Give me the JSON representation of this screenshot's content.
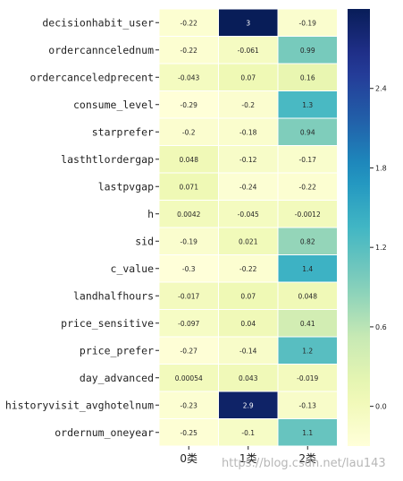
{
  "chart_data": {
    "type": "heatmap",
    "colormap": "YlGnBu",
    "x_categories": [
      "0类",
      "1类",
      "2类"
    ],
    "y_categories": [
      "decisionhabit_user",
      "ordercanncelednum",
      "ordercanceledprecent",
      "consume_level",
      "starprefer",
      "lasthtlordergap",
      "lastpvgap",
      "h",
      "sid",
      "c_value",
      "landhalfhours",
      "price_sensitive",
      "price_prefer",
      "day_advanced",
      "historyvisit_avghotelnum",
      "ordernum_oneyear"
    ],
    "values": [
      [
        -0.22,
        3,
        -0.19
      ],
      [
        -0.22,
        -0.061,
        0.99
      ],
      [
        -0.043,
        0.07,
        0.16
      ],
      [
        -0.29,
        -0.2,
        1.3
      ],
      [
        -0.2,
        -0.18,
        0.94
      ],
      [
        0.048,
        -0.12,
        -0.17
      ],
      [
        0.071,
        -0.24,
        -0.22
      ],
      [
        0.0042,
        -0.045,
        -0.0012
      ],
      [
        -0.19,
        0.021,
        0.82
      ],
      [
        -0.3,
        -0.22,
        1.4
      ],
      [
        -0.017,
        0.07,
        0.048
      ],
      [
        -0.097,
        0.04,
        0.41
      ],
      [
        -0.27,
        -0.14,
        1.2
      ],
      [
        0.00054,
        0.043,
        -0.019
      ],
      [
        -0.23,
        2.9,
        -0.13
      ],
      [
        -0.25,
        -0.1,
        1.1
      ]
    ],
    "labels": [
      [
        "-0.22",
        "3",
        "-0.19"
      ],
      [
        "-0.22",
        "-0.061",
        "0.99"
      ],
      [
        "-0.043",
        "0.07",
        "0.16"
      ],
      [
        "-0.29",
        "-0.2",
        "1.3"
      ],
      [
        "-0.2",
        "-0.18",
        "0.94"
      ],
      [
        "0.048",
        "-0.12",
        "-0.17"
      ],
      [
        "0.071",
        "-0.24",
        "-0.22"
      ],
      [
        "0.0042",
        "-0.045",
        "-0.0012"
      ],
      [
        "-0.19",
        "0.021",
        "0.82"
      ],
      [
        "-0.3",
        "-0.22",
        "1.4"
      ],
      [
        "-0.017",
        "0.07",
        "0.048"
      ],
      [
        "-0.097",
        "0.04",
        "0.41"
      ],
      [
        "-0.27",
        "-0.14",
        "1.2"
      ],
      [
        "0.00054",
        "0.043",
        "-0.019"
      ],
      [
        "-0.23",
        "2.9",
        "-0.13"
      ],
      [
        "-0.25",
        "-0.1",
        "1.1"
      ]
    ],
    "colorbar": {
      "vmin": -0.3,
      "vmax": 3,
      "ticks": [
        0.0,
        0.6,
        1.2,
        1.8,
        2.4
      ],
      "tick_labels": [
        "0.0",
        "0.6",
        "1.2",
        "1.8",
        "2.4"
      ]
    }
  },
  "watermark": "https://blog.csdn.net/lau143"
}
